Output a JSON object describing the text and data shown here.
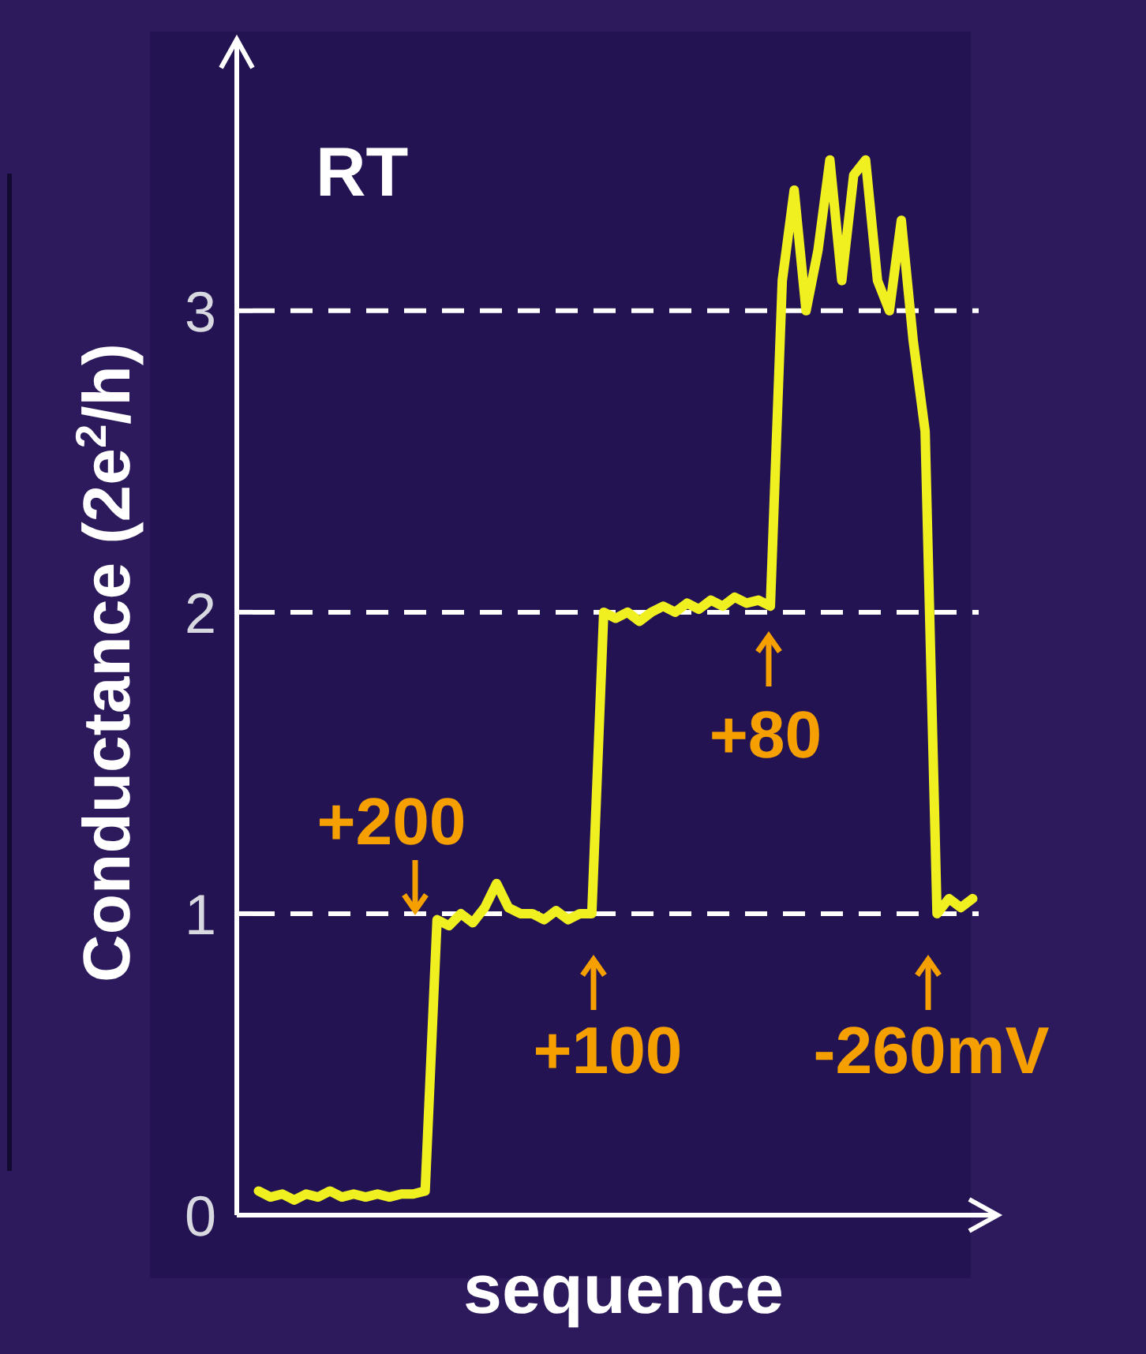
{
  "chart_data": {
    "type": "line",
    "xlabel": "sequence",
    "ylabel": "Conductance (2e$^{2}$/h)",
    "categories": [
      null,
      null,
      null,
      null,
      null,
      null,
      null,
      null,
      null,
      null,
      null,
      null,
      null,
      null,
      null,
      null,
      null,
      null,
      null,
      null,
      null,
      null,
      null,
      null,
      null,
      null,
      null,
      null,
      null,
      null,
      null,
      null,
      null,
      null,
      null,
      null,
      null,
      null,
      null,
      null,
      null,
      null,
      null,
      null,
      null,
      null,
      null,
      null,
      null,
      null,
      null,
      null,
      null,
      null,
      null,
      null,
      null,
      null,
      null,
      null,
      null
    ],
    "series": [
      {
        "color": "#f0f020",
        "values": [
          0.08,
          0.06,
          0.07,
          0.05,
          0.07,
          0.06,
          0.08,
          0.06,
          0.07,
          0.06,
          0.07,
          0.06,
          0.07,
          0.07,
          0.08,
          0.98,
          0.96,
          1.0,
          0.97,
          1.02,
          1.1,
          1.02,
          1.0,
          1.0,
          0.98,
          1.01,
          0.98,
          1.0,
          1.0,
          2.0,
          1.98,
          2.0,
          1.97,
          2.0,
          2.02,
          2.0,
          2.03,
          2.01,
          2.04,
          2.02,
          2.05,
          2.03,
          2.04,
          2.02,
          3.1,
          3.4,
          3.0,
          3.2,
          3.5,
          3.1,
          3.45,
          3.5,
          3.1,
          3.0,
          3.3,
          2.9,
          2.6,
          1.0,
          1.05,
          1.02,
          1.05
        ]
      }
    ],
    "ylim": [
      0,
      3.9
    ],
    "yticks": [
      0,
      1,
      2,
      3
    ],
    "grid": "y",
    "line_style": "solid",
    "annotations": [
      "RT",
      "+200",
      "+100",
      "+80",
      "-260mV"
    ]
  }
}
